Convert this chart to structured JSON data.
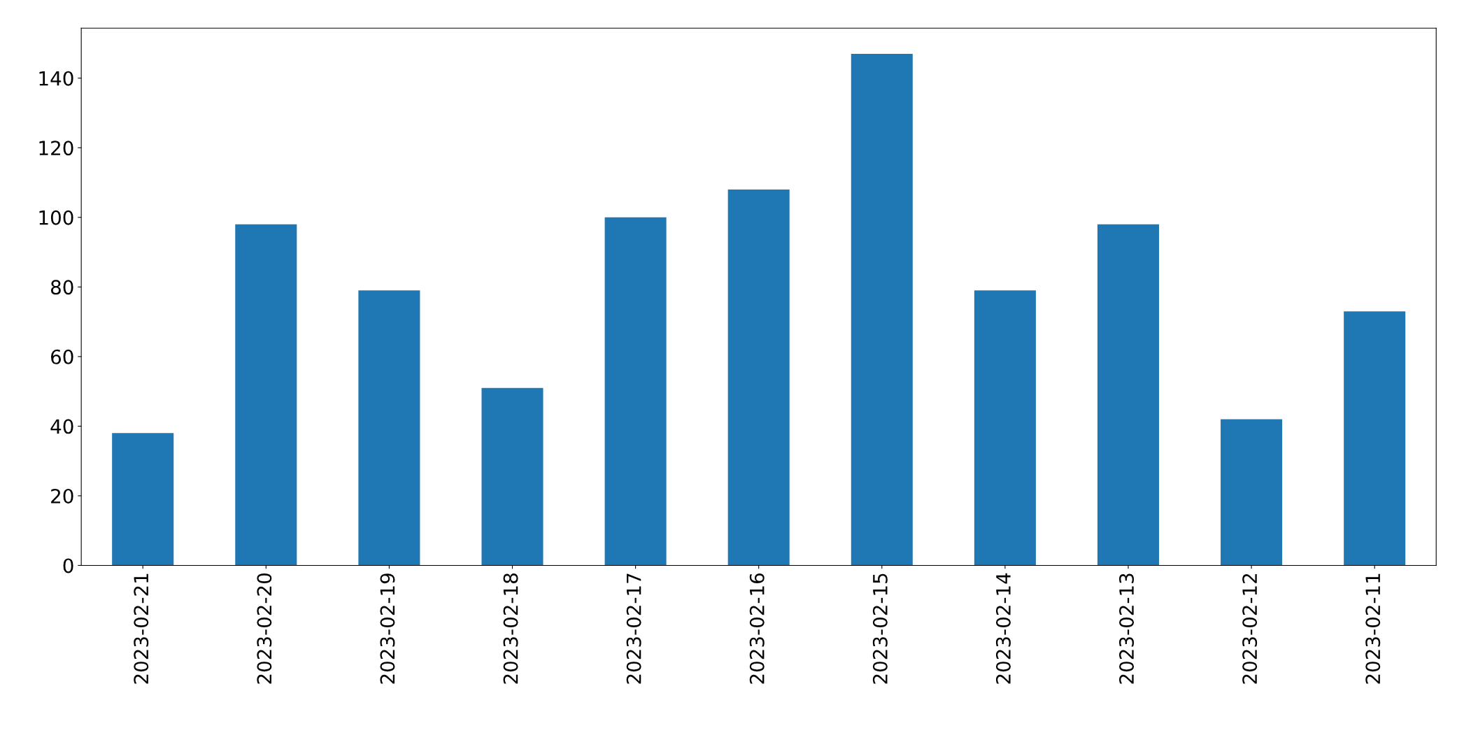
{
  "chart_data": {
    "type": "bar",
    "categories": [
      "2023-02-21",
      "2023-02-20",
      "2023-02-19",
      "2023-02-18",
      "2023-02-17",
      "2023-02-16",
      "2023-02-15",
      "2023-02-14",
      "2023-02-13",
      "2023-02-12",
      "2023-02-11"
    ],
    "values": [
      38,
      98,
      79,
      51,
      100,
      108,
      147,
      79,
      98,
      42,
      73
    ],
    "color": "#1f77b4",
    "ylim": [
      0,
      154.35
    ],
    "yticks": [
      0,
      20,
      40,
      60,
      80,
      100,
      120,
      140
    ],
    "grid": false,
    "legend": false
  }
}
